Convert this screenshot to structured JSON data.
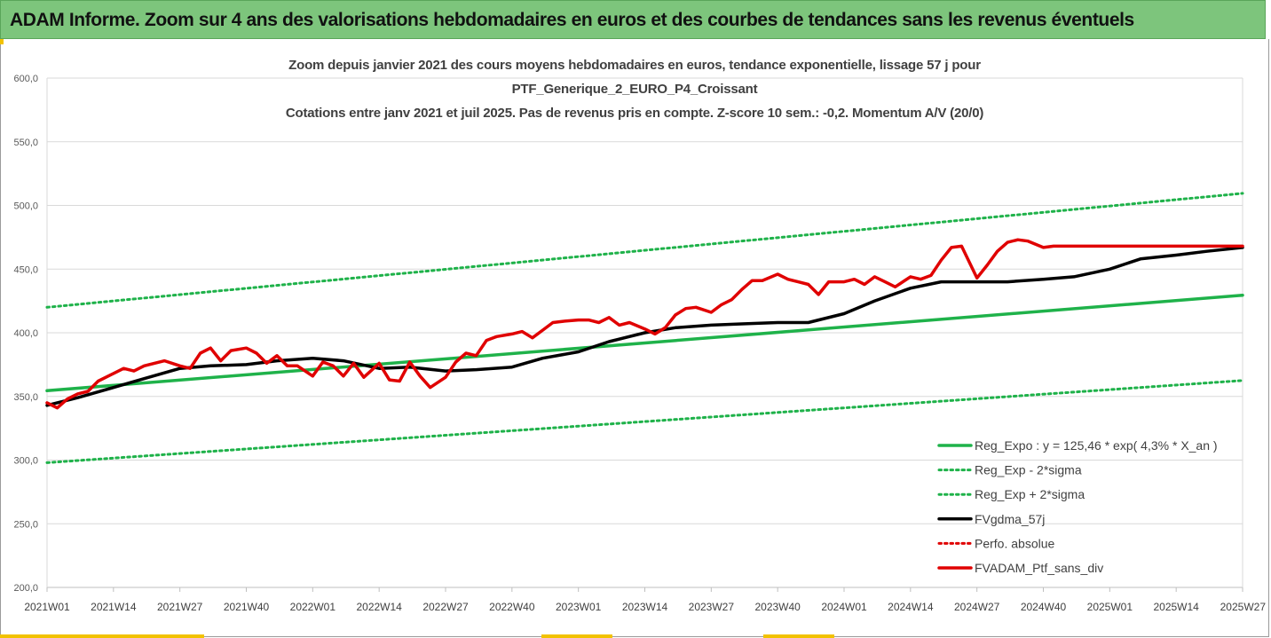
{
  "banner": {
    "title": "ADAM Informe. Zoom sur 4 ans des valorisations hebdomadaires en euros et des courbes de tendances sans les revenus éventuels",
    "background": "#7dc57c"
  },
  "chart_data": {
    "type": "line",
    "title_lines": [
      "Zoom depuis janvier 2021 des cours moyens hebdomadaires  en euros, tendance exponentielle, lissage 57 j pour",
      "PTF_Generique_2_EURO_P4_Croissant",
      "Cotations entre janv 2021 et juil 2025. Pas de revenus pris en compte. Z-score 10 sem.: -0,2. Momentum A/V (20/0)"
    ],
    "x_tick_labels": [
      "2021W01",
      "2021W14",
      "2021W27",
      "2021W40",
      "2022W01",
      "2022W14",
      "2022W27",
      "2022W40",
      "2023W01",
      "2023W14",
      "2023W27",
      "2023W40",
      "2024W01",
      "2024W14",
      "2024W27",
      "2024W40",
      "2025W01",
      "2025W14",
      "2025W27"
    ],
    "y_tick_labels": [
      "200,0",
      "250,0",
      "300,0",
      "350,0",
      "400,0",
      "450,0",
      "500,0",
      "550,0",
      "600,0"
    ],
    "ylim": [
      200,
      600
    ],
    "grid": true,
    "legend_position": "bottom-right",
    "series": [
      {
        "name": "Reg_Expo : y = 125,46 * exp( 4,3% *  X_an )",
        "color": "#1fb24a",
        "style": "solid",
        "x": [
          "2021W01",
          "2025W27"
        ],
        "values": [
          354.5,
          429.5
        ]
      },
      {
        "name": "Reg_Exp - 2*sigma",
        "color": "#1fb24a",
        "style": "dotted",
        "x": [
          "2021W01",
          "2025W27"
        ],
        "values": [
          298,
          362.5
        ]
      },
      {
        "name": "Reg_Exp + 2*sigma",
        "color": "#1fb24a",
        "style": "dotted",
        "x": [
          "2021W01",
          "2025W27"
        ],
        "values": [
          420,
          509.5
        ]
      },
      {
        "name": "FVgdma_57j",
        "color": "#000000",
        "style": "solid",
        "x": [
          "2021W01",
          "2021W07",
          "2021W14",
          "2021W20",
          "2021W27",
          "2021W33",
          "2021W40",
          "2021W46",
          "2022W01",
          "2022W07",
          "2022W14",
          "2022W20",
          "2022W27",
          "2022W33",
          "2022W40",
          "2022W46",
          "2023W01",
          "2023W07",
          "2023W14",
          "2023W20",
          "2023W27",
          "2023W33",
          "2023W40",
          "2023W46",
          "2024W01",
          "2024W07",
          "2024W14",
          "2024W20",
          "2024W27",
          "2024W33",
          "2024W40",
          "2024W46",
          "2025W01",
          "2025W07",
          "2025W14",
          "2025W20",
          "2025W27"
        ],
        "values": [
          343,
          349,
          357,
          364,
          372,
          374,
          375,
          378,
          380,
          378,
          372,
          373,
          370,
          371,
          373,
          380,
          385,
          393,
          400,
          404,
          406,
          407,
          408,
          408,
          415,
          425,
          435,
          440,
          440,
          440,
          442,
          444,
          450,
          458,
          461,
          464,
          467
        ]
      },
      {
        "name": "Perfo. absolue",
        "color": "#e00000",
        "style": "dotted",
        "x": [],
        "values": []
      },
      {
        "name": "FVADAM_Ptf_sans_div",
        "color": "#e00000",
        "style": "solid",
        "x": [
          "2021W01",
          "2021W03",
          "2021W05",
          "2021W07",
          "2021W09",
          "2021W11",
          "2021W14",
          "2021W16",
          "2021W18",
          "2021W20",
          "2021W22",
          "2021W24",
          "2021W27",
          "2021W29",
          "2021W31",
          "2021W33",
          "2021W35",
          "2021W37",
          "2021W40",
          "2021W42",
          "2021W44",
          "2021W46",
          "2021W48",
          "2021W50",
          "2022W01",
          "2022W03",
          "2022W05",
          "2022W07",
          "2022W09",
          "2022W11",
          "2022W14",
          "2022W16",
          "2022W18",
          "2022W20",
          "2022W22",
          "2022W24",
          "2022W27",
          "2022W29",
          "2022W31",
          "2022W33",
          "2022W35",
          "2022W37",
          "2022W40",
          "2022W42",
          "2022W44",
          "2022W46",
          "2022W48",
          "2022W50",
          "2023W01",
          "2023W03",
          "2023W05",
          "2023W07",
          "2023W09",
          "2023W11",
          "2023W14",
          "2023W16",
          "2023W18",
          "2023W20",
          "2023W22",
          "2023W24",
          "2023W27",
          "2023W29",
          "2023W31",
          "2023W33",
          "2023W35",
          "2023W37",
          "2023W40",
          "2023W42",
          "2023W44",
          "2023W46",
          "2023W48",
          "2023W50",
          "2024W01",
          "2024W03",
          "2024W05",
          "2024W07",
          "2024W09",
          "2024W11",
          "2024W14",
          "2024W16",
          "2024W18",
          "2024W20",
          "2024W22",
          "2024W24",
          "2024W27",
          "2024W29",
          "2024W31",
          "2024W33",
          "2024W35",
          "2024W37",
          "2024W40",
          "2024W42",
          "2024W44",
          "2024W46",
          "2024W48",
          "2024W50",
          "2025W01",
          "2025W03",
          "2025W05",
          "2025W07",
          "2025W09",
          "2025W11",
          "2025W14",
          "2025W16",
          "2025W18",
          "2025W20",
          "2025W22",
          "2025W24",
          "2025W27"
        ],
        "values": [
          345,
          341,
          348,
          352,
          354,
          362,
          368,
          372,
          370,
          374,
          376,
          378,
          374,
          372,
          384,
          388,
          378,
          386,
          388,
          384,
          376,
          382,
          374,
          374,
          366,
          377,
          374,
          366,
          376,
          365,
          376,
          363,
          362,
          377,
          366,
          357,
          365,
          377,
          384,
          382,
          394,
          397,
          399,
          401,
          396,
          402,
          408,
          409,
          410,
          410,
          408,
          412,
          406,
          408,
          403,
          399,
          404,
          414,
          419,
          420,
          416,
          422,
          426,
          434,
          441,
          441,
          446,
          442,
          440,
          438,
          430,
          440,
          440,
          442,
          438,
          444,
          440,
          436,
          444,
          442,
          445,
          457,
          467,
          468,
          443,
          453,
          464,
          471,
          473,
          472,
          467,
          468,
          468,
          468,
          468,
          468,
          468,
          468,
          468,
          468,
          468,
          468,
          468,
          468,
          468,
          468,
          468,
          468,
          468
        ]
      }
    ]
  }
}
